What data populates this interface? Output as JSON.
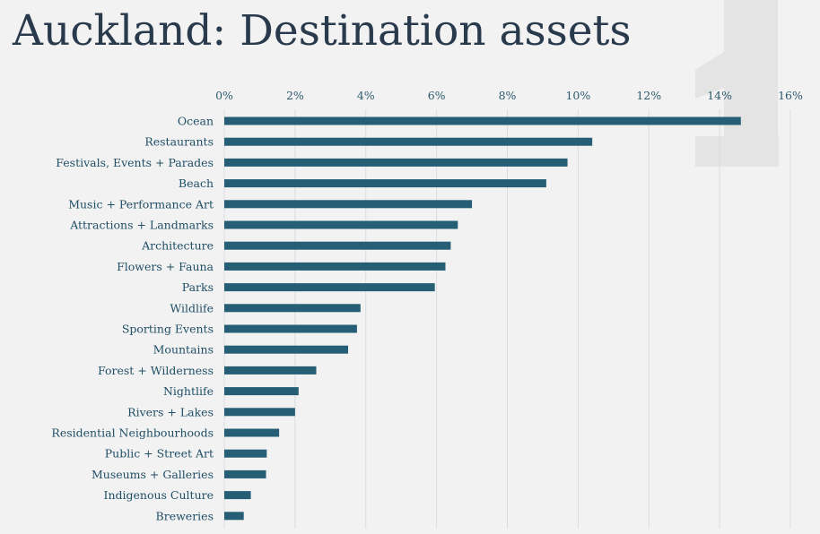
{
  "page": {
    "title": "Auckland: Destination assets"
  },
  "colors": {
    "bar": "#255e75",
    "grid": "#d9dde3",
    "title": "#2a3a4d",
    "watermark": "#e4e4e4"
  },
  "chart_data": {
    "type": "bar",
    "orientation": "horizontal",
    "title": "",
    "xlabel": "",
    "ylabel": "",
    "xlim": [
      0,
      16
    ],
    "ticks": [
      0,
      2,
      4,
      6,
      8,
      10,
      12,
      14,
      16
    ],
    "tick_labels": [
      "0%",
      "2%",
      "4%",
      "6%",
      "8%",
      "10%",
      "12%",
      "14%",
      "16%"
    ],
    "grid": true,
    "categories": [
      "Ocean",
      "Restaurants",
      "Festivals, Events + Parades",
      "Beach",
      "Music + Performance Art",
      "Attractions + Landmarks",
      "Architecture",
      "Flowers + Fauna",
      "Parks",
      "Wildlife",
      "Sporting Events",
      "Mountains",
      "Forest + Wilderness",
      "Nightlife",
      "Rivers + Lakes",
      "Residential Neighbourhoods",
      "Public + Street Art",
      "Museums + Galleries",
      "Indigenous Culture",
      "Breweries"
    ],
    "values": [
      14.6,
      10.4,
      9.7,
      9.1,
      7.0,
      6.6,
      6.4,
      6.25,
      5.95,
      3.85,
      3.75,
      3.5,
      2.6,
      2.1,
      2.0,
      1.55,
      1.2,
      1.18,
      0.75,
      0.55
    ]
  }
}
